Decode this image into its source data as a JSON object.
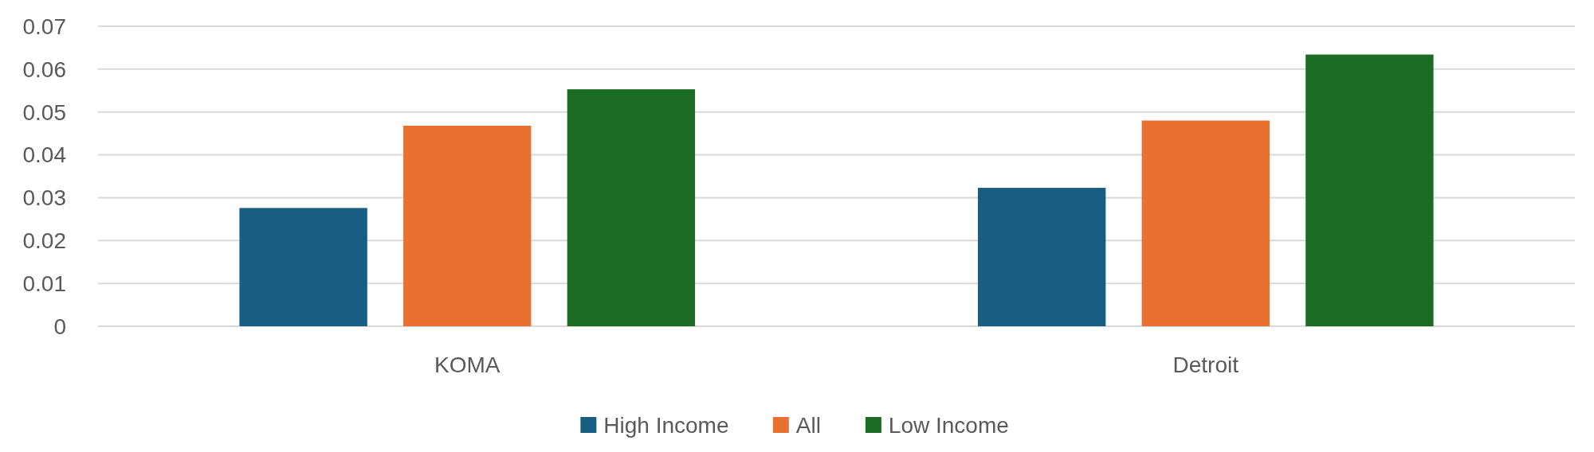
{
  "chart_data": {
    "type": "bar",
    "categories": [
      "KOMA",
      "Detroit"
    ],
    "series": [
      {
        "name": "High Income",
        "color": "#175e82",
        "values": [
          0.0276,
          0.0323
        ]
      },
      {
        "name": "All",
        "color": "#e87132",
        "values": [
          0.0468,
          0.048
        ]
      },
      {
        "name": "Low Income",
        "color": "#1b6b24",
        "values": [
          0.0553,
          0.0634
        ]
      }
    ],
    "ylim": [
      0,
      0.07
    ],
    "yticks": [
      0,
      0.01,
      0.02,
      0.03,
      0.04,
      0.05,
      0.06,
      0.07
    ],
    "grid": "y",
    "legend": "bottom"
  }
}
